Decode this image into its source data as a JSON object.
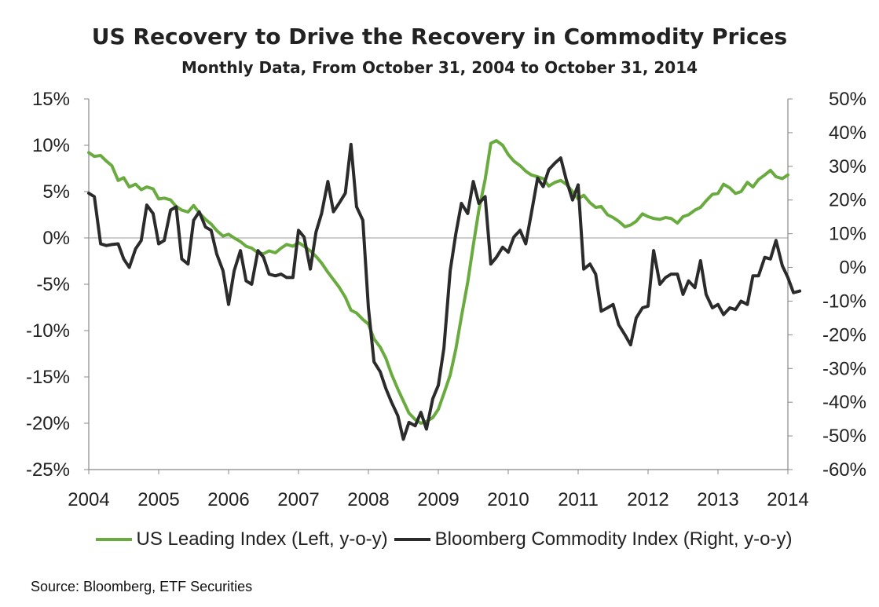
{
  "chart_data": {
    "type": "line",
    "title": "US Recovery to Drive the Recovery in Commodity Prices",
    "subtitle": "Monthly Data, From October 31, 2004 to October 31, 2014",
    "source": "Source: Bloomberg, ETF Securities",
    "x_ticks": [
      "2004",
      "2005",
      "2006",
      "2007",
      "2008",
      "2009",
      "2010",
      "2011",
      "2012",
      "2013",
      "2014"
    ],
    "xlim": [
      2004.0,
      2014.0
    ],
    "left_axis": {
      "ylim": [
        -25,
        15
      ],
      "ticks": [
        "15%",
        "10%",
        "5%",
        "0%",
        "-5%",
        "-10%",
        "-15%",
        "-20%",
        "-25%"
      ],
      "tick_values": [
        15,
        10,
        5,
        0,
        -5,
        -10,
        -15,
        -20,
        -25
      ]
    },
    "right_axis": {
      "ylim": [
        -60,
        50
      ],
      "ticks": [
        "50%",
        "40%",
        "30%",
        "20%",
        "10%",
        "0%",
        "-10%",
        "-20%",
        "-30%",
        "-40%",
        "-50%",
        "-60%"
      ],
      "tick_values": [
        50,
        40,
        30,
        20,
        10,
        0,
        -10,
        -20,
        -30,
        -40,
        -50,
        -60
      ]
    },
    "series": [
      {
        "name": "US Leading Index (Left, y-o-y)",
        "axis": "left",
        "color": "#6aab3f",
        "points": [
          [
            2004.0,
            9.2
          ],
          [
            2004.08,
            8.8
          ],
          [
            2004.17,
            8.9
          ],
          [
            2004.25,
            8.3
          ],
          [
            2004.33,
            7.8
          ],
          [
            2004.42,
            6.2
          ],
          [
            2004.5,
            6.5
          ],
          [
            2004.58,
            5.5
          ],
          [
            2004.67,
            5.8
          ],
          [
            2004.75,
            5.2
          ],
          [
            2004.83,
            5.5
          ],
          [
            2004.92,
            5.3
          ],
          [
            2005.0,
            4.2
          ],
          [
            2005.08,
            4.3
          ],
          [
            2005.17,
            4.1
          ],
          [
            2005.25,
            3.4
          ],
          [
            2005.33,
            3.0
          ],
          [
            2005.42,
            2.8
          ],
          [
            2005.5,
            3.5
          ],
          [
            2005.58,
            2.7
          ],
          [
            2005.67,
            2.0
          ],
          [
            2005.75,
            1.5
          ],
          [
            2005.83,
            0.8
          ],
          [
            2005.92,
            0.2
          ],
          [
            2006.0,
            0.4
          ],
          [
            2006.08,
            0.0
          ],
          [
            2006.17,
            -0.4
          ],
          [
            2006.25,
            -0.9
          ],
          [
            2006.33,
            -1.1
          ],
          [
            2006.42,
            -1.6
          ],
          [
            2006.5,
            -1.7
          ],
          [
            2006.58,
            -1.4
          ],
          [
            2006.67,
            -1.6
          ],
          [
            2006.75,
            -1.1
          ],
          [
            2006.83,
            -0.7
          ],
          [
            2006.92,
            -0.9
          ],
          [
            2007.0,
            -0.5
          ],
          [
            2007.08,
            -0.9
          ],
          [
            2007.17,
            -1.4
          ],
          [
            2007.25,
            -2.0
          ],
          [
            2007.33,
            -2.7
          ],
          [
            2007.42,
            -3.7
          ],
          [
            2007.5,
            -4.5
          ],
          [
            2007.58,
            -5.3
          ],
          [
            2007.67,
            -6.4
          ],
          [
            2007.75,
            -7.8
          ],
          [
            2007.83,
            -8.1
          ],
          [
            2007.92,
            -8.8
          ],
          [
            2008.0,
            -9.3
          ],
          [
            2008.08,
            -10.9
          ],
          [
            2008.17,
            -11.8
          ],
          [
            2008.25,
            -13.0
          ],
          [
            2008.33,
            -14.7
          ],
          [
            2008.42,
            -16.3
          ],
          [
            2008.5,
            -17.6
          ],
          [
            2008.58,
            -18.9
          ],
          [
            2008.67,
            -19.6
          ],
          [
            2008.75,
            -20.0
          ],
          [
            2008.83,
            -19.8
          ],
          [
            2008.92,
            -19.4
          ],
          [
            2009.0,
            -18.5
          ],
          [
            2009.08,
            -16.8
          ],
          [
            2009.17,
            -14.8
          ],
          [
            2009.25,
            -12.0
          ],
          [
            2009.33,
            -8.5
          ],
          [
            2009.42,
            -4.8
          ],
          [
            2009.5,
            -0.8
          ],
          [
            2009.58,
            3.0
          ],
          [
            2009.67,
            6.3
          ],
          [
            2009.75,
            10.2
          ],
          [
            2009.83,
            10.5
          ],
          [
            2009.92,
            10.0
          ],
          [
            2010.0,
            9.0
          ],
          [
            2010.08,
            8.3
          ],
          [
            2010.17,
            7.8
          ],
          [
            2010.25,
            7.2
          ],
          [
            2010.33,
            6.8
          ],
          [
            2010.42,
            6.6
          ],
          [
            2010.5,
            6.4
          ],
          [
            2010.58,
            5.6
          ],
          [
            2010.67,
            6.0
          ],
          [
            2010.75,
            6.2
          ],
          [
            2010.83,
            5.8
          ],
          [
            2010.92,
            5.0
          ],
          [
            2011.0,
            4.2
          ],
          [
            2011.08,
            4.6
          ],
          [
            2011.17,
            3.8
          ],
          [
            2011.25,
            3.3
          ],
          [
            2011.33,
            3.4
          ],
          [
            2011.42,
            2.5
          ],
          [
            2011.5,
            2.2
          ],
          [
            2011.58,
            1.8
          ],
          [
            2011.67,
            1.2
          ],
          [
            2011.75,
            1.4
          ],
          [
            2011.83,
            1.8
          ],
          [
            2011.92,
            2.6
          ],
          [
            2012.0,
            2.3
          ],
          [
            2012.08,
            2.1
          ],
          [
            2012.17,
            2.0
          ],
          [
            2012.25,
            2.2
          ],
          [
            2012.33,
            2.1
          ],
          [
            2012.42,
            1.6
          ],
          [
            2012.5,
            2.3
          ],
          [
            2012.58,
            2.5
          ],
          [
            2012.67,
            3.0
          ],
          [
            2012.75,
            3.3
          ],
          [
            2012.83,
            4.0
          ],
          [
            2012.92,
            4.7
          ],
          [
            2013.0,
            4.8
          ],
          [
            2013.08,
            5.8
          ],
          [
            2013.17,
            5.4
          ],
          [
            2013.25,
            4.8
          ],
          [
            2013.33,
            5.0
          ],
          [
            2013.42,
            6.0
          ],
          [
            2013.5,
            5.5
          ],
          [
            2013.58,
            6.3
          ],
          [
            2013.67,
            6.8
          ],
          [
            2013.75,
            7.3
          ],
          [
            2013.83,
            6.6
          ],
          [
            2013.92,
            6.4
          ],
          [
            2014.0,
            6.8
          ]
        ]
      },
      {
        "name": "Bloomberg Commodity Index (Right, y-o-y)",
        "axis": "right",
        "color": "#2b2b2b",
        "points": [
          [
            2004.0,
            22
          ],
          [
            2004.08,
            21
          ],
          [
            2004.17,
            7
          ],
          [
            2004.25,
            6.5
          ],
          [
            2004.33,
            6.8
          ],
          [
            2004.42,
            7
          ],
          [
            2004.5,
            2.5
          ],
          [
            2004.58,
            0
          ],
          [
            2004.67,
            5.5
          ],
          [
            2004.75,
            8
          ],
          [
            2004.83,
            18.5
          ],
          [
            2004.92,
            16
          ],
          [
            2005.0,
            7
          ],
          [
            2005.08,
            8
          ],
          [
            2005.17,
            17
          ],
          [
            2005.25,
            18
          ],
          [
            2005.33,
            2.5
          ],
          [
            2005.42,
            1
          ],
          [
            2005.5,
            14
          ],
          [
            2005.58,
            16.5
          ],
          [
            2005.67,
            12
          ],
          [
            2005.75,
            11
          ],
          [
            2005.83,
            4
          ],
          [
            2005.92,
            -1
          ],
          [
            2006.0,
            -11
          ],
          [
            2006.08,
            -1
          ],
          [
            2006.17,
            5
          ],
          [
            2006.25,
            -4
          ],
          [
            2006.33,
            -5
          ],
          [
            2006.42,
            5
          ],
          [
            2006.5,
            3
          ],
          [
            2006.58,
            -2
          ],
          [
            2006.67,
            -2.5
          ],
          [
            2006.75,
            -2
          ],
          [
            2006.83,
            -3
          ],
          [
            2006.92,
            -3
          ],
          [
            2007.0,
            11
          ],
          [
            2007.08,
            9
          ],
          [
            2007.17,
            -0.5
          ],
          [
            2007.25,
            10.5
          ],
          [
            2007.33,
            16
          ],
          [
            2007.42,
            25.5
          ],
          [
            2007.5,
            16.5
          ],
          [
            2007.58,
            19
          ],
          [
            2007.67,
            22
          ],
          [
            2007.75,
            36.5
          ],
          [
            2007.83,
            18
          ],
          [
            2007.92,
            14
          ],
          [
            2008.0,
            -12
          ],
          [
            2008.08,
            -28
          ],
          [
            2008.17,
            -31
          ],
          [
            2008.25,
            -36
          ],
          [
            2008.33,
            -40
          ],
          [
            2008.42,
            -44
          ],
          [
            2008.5,
            -51
          ],
          [
            2008.58,
            -46
          ],
          [
            2008.67,
            -47
          ],
          [
            2008.75,
            -43
          ],
          [
            2008.83,
            -48
          ],
          [
            2008.92,
            -39
          ],
          [
            2009.0,
            -35
          ],
          [
            2009.08,
            -24
          ],
          [
            2009.17,
            -1
          ],
          [
            2009.25,
            10
          ],
          [
            2009.33,
            19
          ],
          [
            2009.42,
            16
          ],
          [
            2009.5,
            25.5
          ],
          [
            2009.58,
            19
          ],
          [
            2009.67,
            21
          ],
          [
            2009.75,
            1
          ],
          [
            2009.83,
            3
          ],
          [
            2009.92,
            6
          ],
          [
            2010.0,
            4.5
          ],
          [
            2010.08,
            9
          ],
          [
            2010.17,
            11
          ],
          [
            2010.25,
            7
          ],
          [
            2010.33,
            16
          ],
          [
            2010.42,
            26.5
          ],
          [
            2010.5,
            24
          ],
          [
            2010.58,
            29
          ],
          [
            2010.67,
            31
          ],
          [
            2010.75,
            32.5
          ],
          [
            2010.83,
            26
          ],
          [
            2010.92,
            20
          ],
          [
            2011.0,
            24.5
          ],
          [
            2011.08,
            -0.5
          ],
          [
            2011.17,
            1
          ],
          [
            2011.25,
            -2
          ],
          [
            2011.33,
            -13
          ],
          [
            2011.42,
            -12
          ],
          [
            2011.5,
            -11
          ],
          [
            2011.58,
            -17
          ],
          [
            2011.67,
            -20
          ],
          [
            2011.75,
            -23
          ],
          [
            2011.83,
            -15
          ],
          [
            2011.92,
            -12
          ],
          [
            2012.0,
            -11.5
          ],
          [
            2012.08,
            5
          ],
          [
            2012.17,
            -5
          ],
          [
            2012.25,
            -3
          ],
          [
            2012.33,
            -2
          ],
          [
            2012.42,
            -2
          ],
          [
            2012.5,
            -8
          ],
          [
            2012.58,
            -4
          ],
          [
            2012.67,
            -6
          ],
          [
            2012.75,
            2
          ],
          [
            2012.83,
            -8
          ],
          [
            2012.92,
            -12
          ],
          [
            2013.0,
            -11
          ],
          [
            2013.08,
            -14
          ],
          [
            2013.17,
            -12
          ],
          [
            2013.25,
            -12.5
          ],
          [
            2013.33,
            -10
          ],
          [
            2013.42,
            -11
          ],
          [
            2013.5,
            -2.5
          ],
          [
            2013.58,
            -2.5
          ],
          [
            2013.67,
            3
          ],
          [
            2013.75,
            2.5
          ],
          [
            2013.83,
            8
          ],
          [
            2013.92,
            0.5
          ],
          [
            2014.0,
            -3
          ],
          [
            2014.08,
            -7.5
          ],
          [
            2014.17,
            -7
          ]
        ]
      }
    ],
    "legend": [
      {
        "label": "US Leading Index (Left, y-o-y)",
        "color": "#6aab3f"
      },
      {
        "label": "Bloomberg Commodity Index (Right, y-o-y)",
        "color": "#2b2b2b"
      }
    ]
  }
}
